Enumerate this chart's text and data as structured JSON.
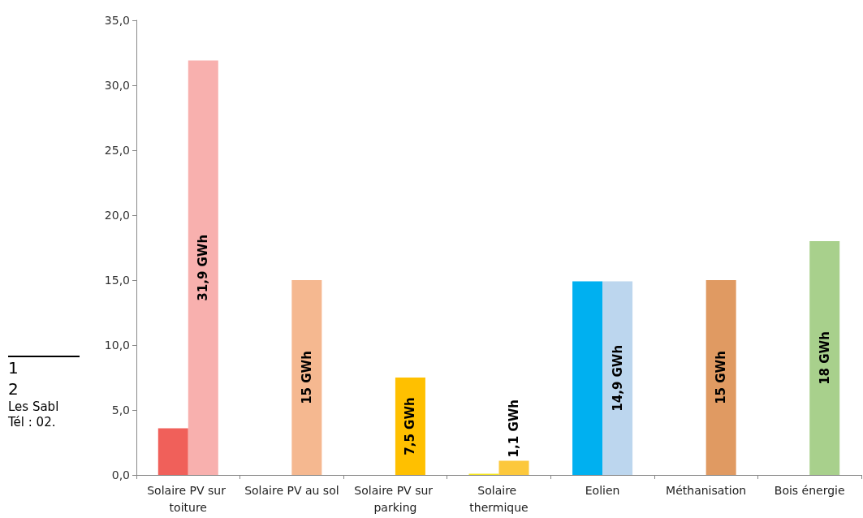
{
  "chart_data": {
    "type": "bar",
    "categories": [
      "Solaire PV sur toiture",
      "Solaire PV au sol",
      "Solaire PV sur parking",
      "Solaire thermique",
      "Eolien",
      "Méthanisation",
      "Bois énergie"
    ],
    "series": [
      {
        "colors": [
          "#f0605a",
          "#f0605a",
          "#f0605a",
          "#f5e51a",
          "#00b0f0",
          "#00b0f0",
          "#00b0f0"
        ],
        "values": [
          3.6,
          null,
          null,
          0.1,
          14.9,
          null,
          null
        ]
      },
      {
        "colors": [
          "#f8b0ae",
          "#f5b890",
          "#ffc000",
          "#fcc83c",
          "#bcd6ee",
          "#e09a62",
          "#a8d08c"
        ],
        "values": [
          31.9,
          15,
          7.5,
          1.1,
          14.9,
          15,
          18
        ],
        "value_labels": [
          "31,9 GWh",
          "15 GWh",
          "7,5 GWh",
          "1,1 GWh",
          "14,9 GWh",
          "15 GWh",
          "18 GWh"
        ]
      }
    ],
    "ylim": [
      0,
      35
    ],
    "yticks": [
      {
        "value": 0,
        "label": "0,0"
      },
      {
        "value": 5,
        "label": "5,0"
      },
      {
        "value": 10,
        "label": "10,0"
      },
      {
        "value": 15,
        "label": "15,0"
      },
      {
        "value": 20,
        "label": "20,0"
      },
      {
        "value": 25,
        "label": "25,0"
      },
      {
        "value": 30,
        "label": "30,0"
      },
      {
        "value": 35,
        "label": "35,0"
      }
    ],
    "grid": false,
    "annotations": [
      "1",
      "2",
      "Les Sabl",
      "Tél : 02."
    ]
  }
}
